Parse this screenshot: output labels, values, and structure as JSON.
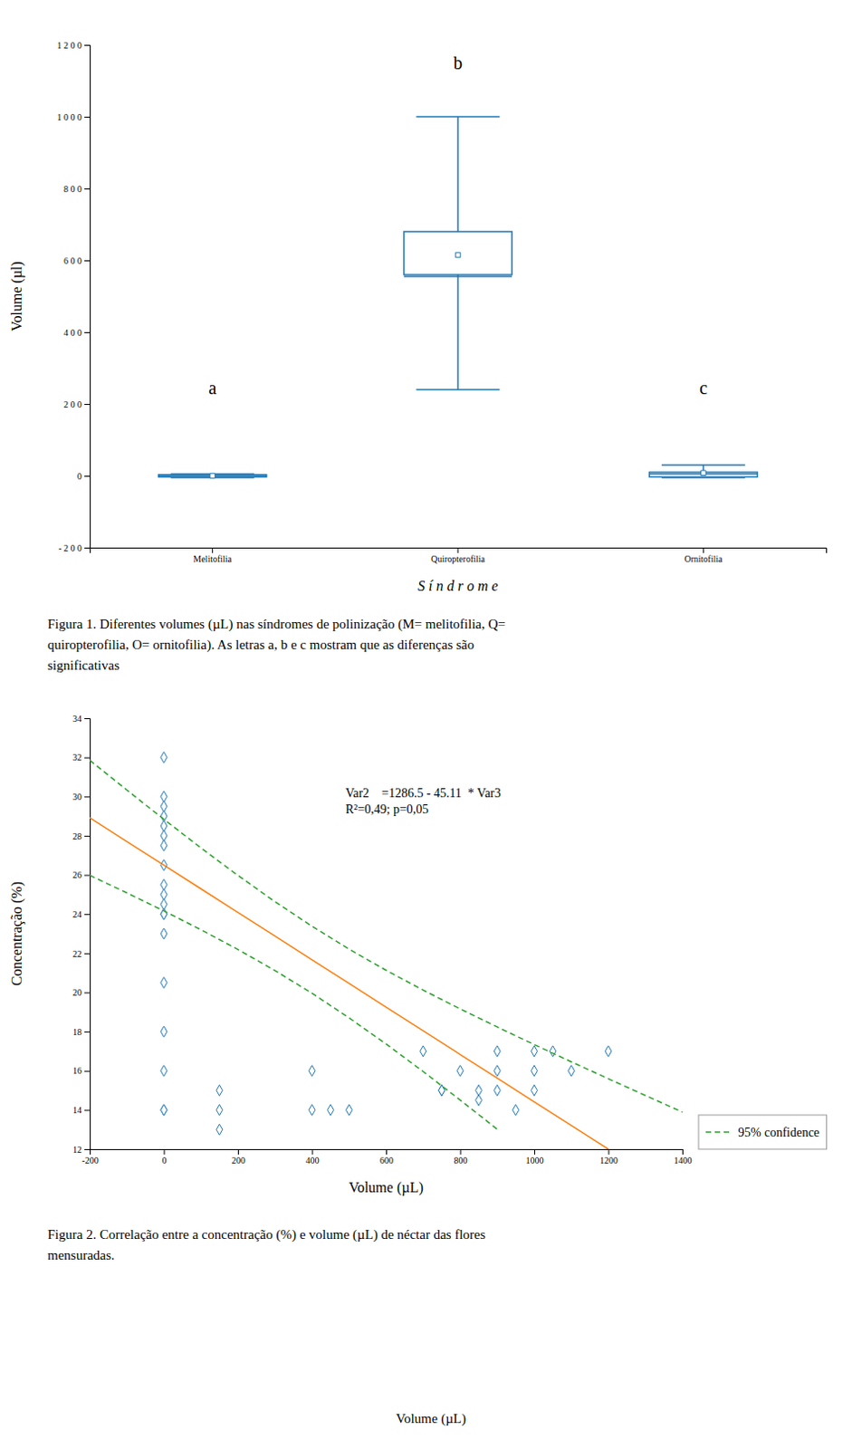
{
  "chart_data": [
    {
      "type": "box",
      "xlabel": "S í n d r o m e",
      "ylabel": "Volume (µl)",
      "categories": [
        "Melitofilia",
        "Quiropterofilia",
        "Ornitofilia"
      ],
      "boxes": [
        {
          "q1": -3,
          "q3": 3,
          "median": 0,
          "mean": 0,
          "whislo": -5,
          "whishi": 5
        },
        {
          "q1": 560,
          "q3": 680,
          "median": 555,
          "mean": 615,
          "whislo": 240,
          "whishi": 1000
        },
        {
          "q1": -3,
          "q3": 10,
          "median": 5,
          "mean": 8,
          "whislo": -5,
          "whishi": 30
        }
      ],
      "ylim": [
        -200,
        1200
      ],
      "yticks": [
        {
          "value": -200,
          "label": "- 2 0 0"
        },
        0,
        {
          "value": 200,
          "label": "2 0 0"
        },
        {
          "value": 400,
          "label": "4 0 0"
        },
        {
          "value": 600,
          "label": "6 0 0"
        },
        {
          "value": 800,
          "label": "8 0 0"
        },
        {
          "value": 1000,
          "label": "1 0 0 0"
        },
        {
          "value": 1200,
          "label": "1 2 0 0"
        }
      ],
      "grid": false,
      "annotations": [
        {
          "text": "a",
          "x": "Melitofilia",
          "y": 245
        },
        {
          "text": "b",
          "x": "Quiropterofilia",
          "y": 1150
        },
        {
          "text": "c",
          "x": "Ornitofilia",
          "y": 245
        }
      ],
      "caption": [
        "Figura 1. Diferentes volumes (µL) nas síndromes de polinização (M= melitofilia, Q=",
        "quiropterofilia, O= ornitofilia). As letras a, b e c mostram que as diferenças são",
        "significativas"
      ]
    },
    {
      "type": "scatter",
      "xlabel": "Volume (µL)",
      "ylabel": "Concentração (%)",
      "xlim": [
        -200,
        1400
      ],
      "ylim": [
        12,
        34
      ],
      "xticks": [
        -200,
        0,
        200,
        400,
        600,
        800,
        1000,
        1200,
        1400
      ],
      "yticks": [
        12,
        14,
        16,
        18,
        20,
        22,
        24,
        26,
        28,
        30,
        32,
        34
      ],
      "grid": false,
      "legend": "lower right",
      "series": [
        {
          "type": "scatter",
          "marker": "diamond",
          "x": [
            0,
            0,
            0,
            0,
            0,
            0,
            0,
            0,
            0,
            0,
            0,
            0,
            0,
            0,
            0,
            0,
            0,
            0,
            0,
            150,
            150,
            150,
            400,
            400,
            450,
            500,
            700,
            750,
            750,
            800,
            850,
            850,
            900,
            900,
            900,
            950,
            1000,
            1000,
            1000,
            1050,
            1100,
            1200
          ],
          "values": [
            32,
            30,
            29.5,
            29,
            28.5,
            28,
            27.5,
            26.5,
            25.5,
            25,
            24.5,
            24,
            24,
            23,
            20.5,
            18,
            16,
            14,
            14,
            15,
            14,
            13,
            16,
            14,
            14,
            14,
            17,
            15,
            15,
            16,
            15,
            14.5,
            17,
            16,
            15,
            14,
            17,
            16,
            15,
            17,
            16,
            17
          ]
        },
        {
          "type": "line",
          "line_style": "solid",
          "x": [
            -200,
            -100,
            0,
            100,
            200,
            300,
            400,
            500,
            600,
            700,
            800,
            900,
            1000,
            1100,
            1200,
            1300,
            1400
          ],
          "values": [
            28.9167,
            27.7083,
            26.5,
            25.2917,
            24.0833,
            22.875,
            21.6667,
            20.4583,
            19.25,
            18.0417,
            16.8333,
            15.625,
            14.4167,
            13.2083,
            12,
            null,
            null
          ]
        },
        {
          "type": "band",
          "name": "95% confidence",
          "line_style": "dashed",
          "x": [
            -200,
            -100,
            0,
            100,
            200,
            300,
            400,
            500,
            600,
            700,
            800,
            900,
            1000,
            1100,
            1200,
            1300,
            1400
          ],
          "upper": [
            31.8539,
            30.3335,
            28.8389,
            27.3805,
            25.9728,
            24.6333,
            23.3775,
            22.2123,
            21.1316,
            20.1198,
            19.1593,
            18.2359,
            17.3386,
            16.4598,
            15.5946,
            14.7394,
            13.8916
          ],
          "lower": [
            25.9795,
            25.0831,
            24.1611,
            23.2029,
            22.1938,
            21.1167,
            19.9559,
            18.7043,
            17.3684,
            15.9636,
            14.5073,
            13.0141,
            null,
            null,
            null,
            null,
            null
          ]
        }
      ],
      "annotations": [
        {
          "text": "Var2    =1286.5 - 45.11  * Var3\nR²=0,49; p=0,05",
          "x": 490,
          "y": 30.5
        }
      ],
      "caption": [
        "Figura 2. Correlação entre a concentração (%) e volume (µL) de néctar das flores",
        "mensuradas."
      ]
    }
  ],
  "footer": "Volume (µL)"
}
